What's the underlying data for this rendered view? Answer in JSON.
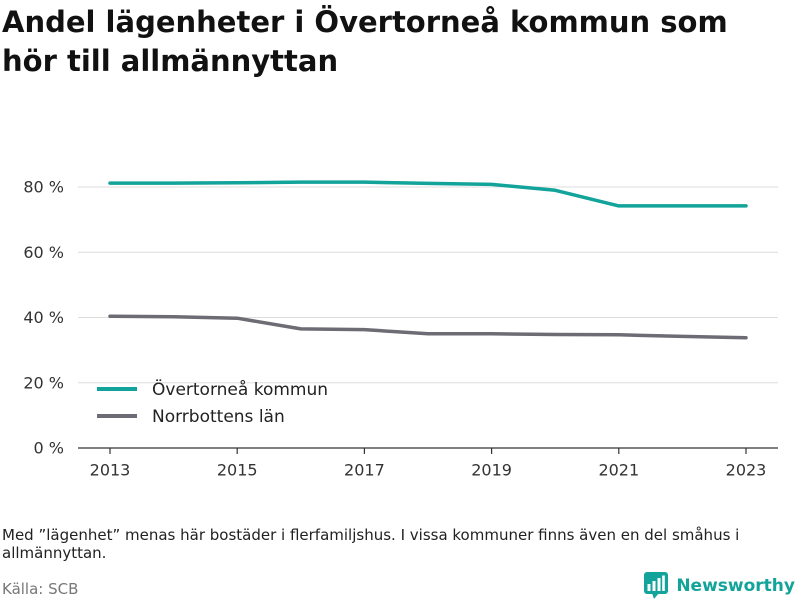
{
  "chart_data": {
    "type": "line",
    "title": "Andel lägenheter i Övertorneå kommun som hör till allmännyttan",
    "x": [
      2013,
      2014,
      2015,
      2016,
      2017,
      2018,
      2019,
      2020,
      2021,
      2022,
      2023
    ],
    "xlim": [
      2013,
      2023
    ],
    "x_ticks": [
      2013,
      2015,
      2017,
      2019,
      2021,
      2023
    ],
    "ylim": [
      0,
      80
    ],
    "y_ticks": [
      0,
      20,
      40,
      60,
      80
    ],
    "y_tick_labels": [
      "0 %",
      "20 %",
      "40 %",
      "60 %",
      "80 %"
    ],
    "grid": "horizontal",
    "legend_position": "bottom-left",
    "series": [
      {
        "name": "Övertorneå kommun",
        "color": "#12a39a",
        "values": [
          81.2,
          81.2,
          81.3,
          81.5,
          81.5,
          81.1,
          80.8,
          79.0,
          74.2,
          74.2,
          74.2
        ]
      },
      {
        "name": "Norrbottens län",
        "color": "#6d6c74",
        "values": [
          40.4,
          40.2,
          39.8,
          36.5,
          36.3,
          35.0,
          35.0,
          34.8,
          34.7,
          34.2,
          33.8
        ]
      }
    ]
  },
  "note": "Med ”lägenhet” menas här bostäder i flerfamiljshus. I vissa kommuner finns även en del småhus i allmännyttan.",
  "source": "Källa: SCB",
  "brand": {
    "name": "Newsworthy",
    "icon": "newsworthy-logo-icon",
    "color": "#12a39a"
  }
}
